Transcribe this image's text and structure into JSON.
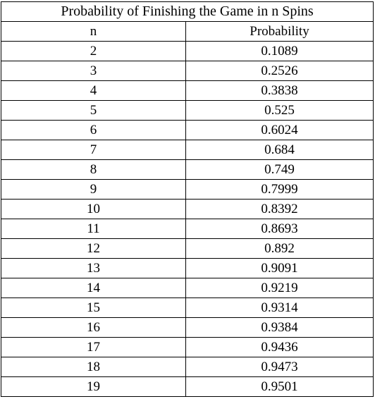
{
  "table": {
    "title": "Probability of Finishing the Game in n Spins",
    "headers": [
      "n",
      "Probability"
    ],
    "rows": [
      [
        "2",
        "0.1089"
      ],
      [
        "3",
        "0.2526"
      ],
      [
        "4",
        "0.3838"
      ],
      [
        "5",
        "0.525"
      ],
      [
        "6",
        "0.6024"
      ],
      [
        "7",
        "0.684"
      ],
      [
        "8",
        "0.749"
      ],
      [
        "9",
        "0.7999"
      ],
      [
        "10",
        "0.8392"
      ],
      [
        "11",
        "0.8693"
      ],
      [
        "12",
        "0.892"
      ],
      [
        "13",
        "0.9091"
      ],
      [
        "14",
        "0.9219"
      ],
      [
        "15",
        "0.9314"
      ],
      [
        "16",
        "0.9384"
      ],
      [
        "17",
        "0.9436"
      ],
      [
        "18",
        "0.9473"
      ],
      [
        "19",
        "0.9501"
      ]
    ]
  }
}
